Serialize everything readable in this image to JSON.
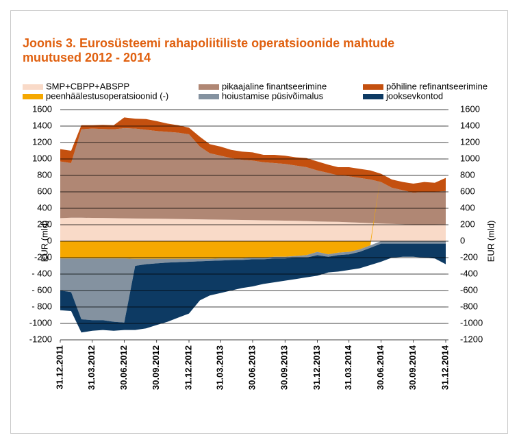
{
  "chart_data": {
    "type": "stacked-area",
    "title": [
      "Joonis 3. Eurosüsteemi rahapoliitiliste operatsioonide mahtude",
      "muutused 2012 - 2014"
    ],
    "ylabel": "EUR (mld)",
    "y2label": "EUR (mld)",
    "x": [
      "31.12.2011",
      "31.01.2012",
      "29.02.2012",
      "31.03.2012",
      "30.04.2012",
      "31.05.2012",
      "30.06.2012",
      "31.07.2012",
      "31.08.2012",
      "30.09.2012",
      "31.10.2012",
      "30.11.2012",
      "31.12.2012",
      "31.01.2013",
      "28.02.2013",
      "31.03.2013",
      "30.04.2013",
      "31.05.2013",
      "30.06.2013",
      "31.07.2013",
      "31.08.2013",
      "30.09.2013",
      "31.10.2013",
      "30.11.2013",
      "31.12.2013",
      "31.01.2014",
      "28.02.2014",
      "31.03.2014",
      "30.04.2014",
      "31.05.2014",
      "30.06.2014",
      "31.07.2014",
      "31.08.2014",
      "30.09.2014",
      "31.10.2014",
      "30.11.2014",
      "31.12.2014"
    ],
    "xlim": [
      "31.12.2011",
      "31.12.2014"
    ],
    "xticks": [
      "31.12.2011",
      "31.03.2012",
      "30.06.2012",
      "30.09.2012",
      "31.12.2012",
      "31.03.2013",
      "30.06.2013",
      "30.09.2013",
      "31.12.2013",
      "31.03.2014",
      "30.06.2014",
      "30.09.2014",
      "31.12.2014"
    ],
    "ylim": [
      -1200,
      1600
    ],
    "yticks": [
      1600,
      1400,
      1200,
      1000,
      800,
      600,
      400,
      200,
      0,
      -200,
      {
        "value": -400,
        "label": "- 400"
      },
      {
        "value": -600,
        "label": "- 600"
      },
      {
        "value": -800,
        "label": "- 800"
      },
      -1000,
      -1200
    ],
    "y2lim": [
      -1200,
      1600
    ],
    "y2ticks": [
      1600,
      1400,
      1200,
      1000,
      800,
      600,
      400,
      200,
      0,
      -200,
      -400,
      -600,
      -800,
      -1000,
      -1200
    ],
    "grid": true,
    "series": [
      {
        "name": "SMP+CBPP+ABSPP",
        "color": "#f9dac8",
        "values": [
          280,
          285,
          285,
          283,
          282,
          280,
          278,
          276,
          275,
          274,
          272,
          270,
          268,
          266,
          264,
          262,
          260,
          258,
          256,
          254,
          252,
          250,
          248,
          245,
          240,
          237,
          235,
          230,
          225,
          220,
          215,
          210,
          205,
          200,
          200,
          200,
          205
        ]
      },
      {
        "name": "pikaajaline finantseerimine",
        "color": "#b08774",
        "values": [
          690,
          665,
          1075,
          1087,
          1083,
          1080,
          1097,
          1094,
          1080,
          1066,
          1058,
          1050,
          1032,
          884,
          806,
          778,
          750,
          732,
          724,
          706,
          698,
          690,
          672,
          655,
          620,
          593,
          565,
          560,
          545,
          530,
          505,
          440,
          415,
          390,
          400,
          400,
          405
        ]
      },
      {
        "name": "põhiline refinantseerimine",
        "color": "#c4500f",
        "values": [
          150,
          150,
          50,
          40,
          50,
          50,
          130,
          120,
          130,
          120,
          100,
          90,
          80,
          120,
          110,
          110,
          100,
          100,
          100,
          90,
          100,
          100,
          100,
          110,
          110,
          100,
          100,
          110,
          110,
          110,
          100,
          100,
          100,
          110,
          120,
          110,
          160
        ]
      },
      {
        "name": "peenhäälestusoperatsioonid (-)",
        "color": "#f5a800",
        "values": [
          -210,
          -210,
          -210,
          -210,
          -210,
          -210,
          -210,
          -215,
          -215,
          -215,
          -215,
          -215,
          -215,
          -215,
          -215,
          -210,
          -210,
          -210,
          -200,
          -200,
          -190,
          -190,
          -180,
          -170,
          -130,
          -160,
          -140,
          -130,
          -100,
          -50,
          0,
          0,
          0,
          0,
          0,
          0,
          0
        ]
      },
      {
        "name": "hoiustamise püsivõimalus",
        "color": "#8492a0",
        "values": [
          -390,
          -410,
          -740,
          -750,
          -750,
          -770,
          -780,
          -85,
          -65,
          -55,
          -45,
          -40,
          -35,
          -30,
          -25,
          -25,
          -20,
          -18,
          -20,
          -20,
          -20,
          -20,
          -20,
          -30,
          -40,
          -30,
          -30,
          -30,
          -30,
          -30,
          -30,
          -30,
          -30,
          -30,
          -30,
          -30,
          -30
        ]
      },
      {
        "name": "jooksevkontod",
        "color": "#0d3a63",
        "values": [
          -240,
          -230,
          -160,
          -130,
          -120,
          -110,
          -90,
          -780,
          -780,
          -750,
          -720,
          -675,
          -630,
          -475,
          -420,
          -395,
          -370,
          -342,
          -330,
          -300,
          -290,
          -270,
          -260,
          -240,
          -250,
          -190,
          -200,
          -190,
          -200,
          -210,
          -220,
          -170,
          -160,
          -160,
          -170,
          -180,
          -250
        ]
      }
    ]
  }
}
